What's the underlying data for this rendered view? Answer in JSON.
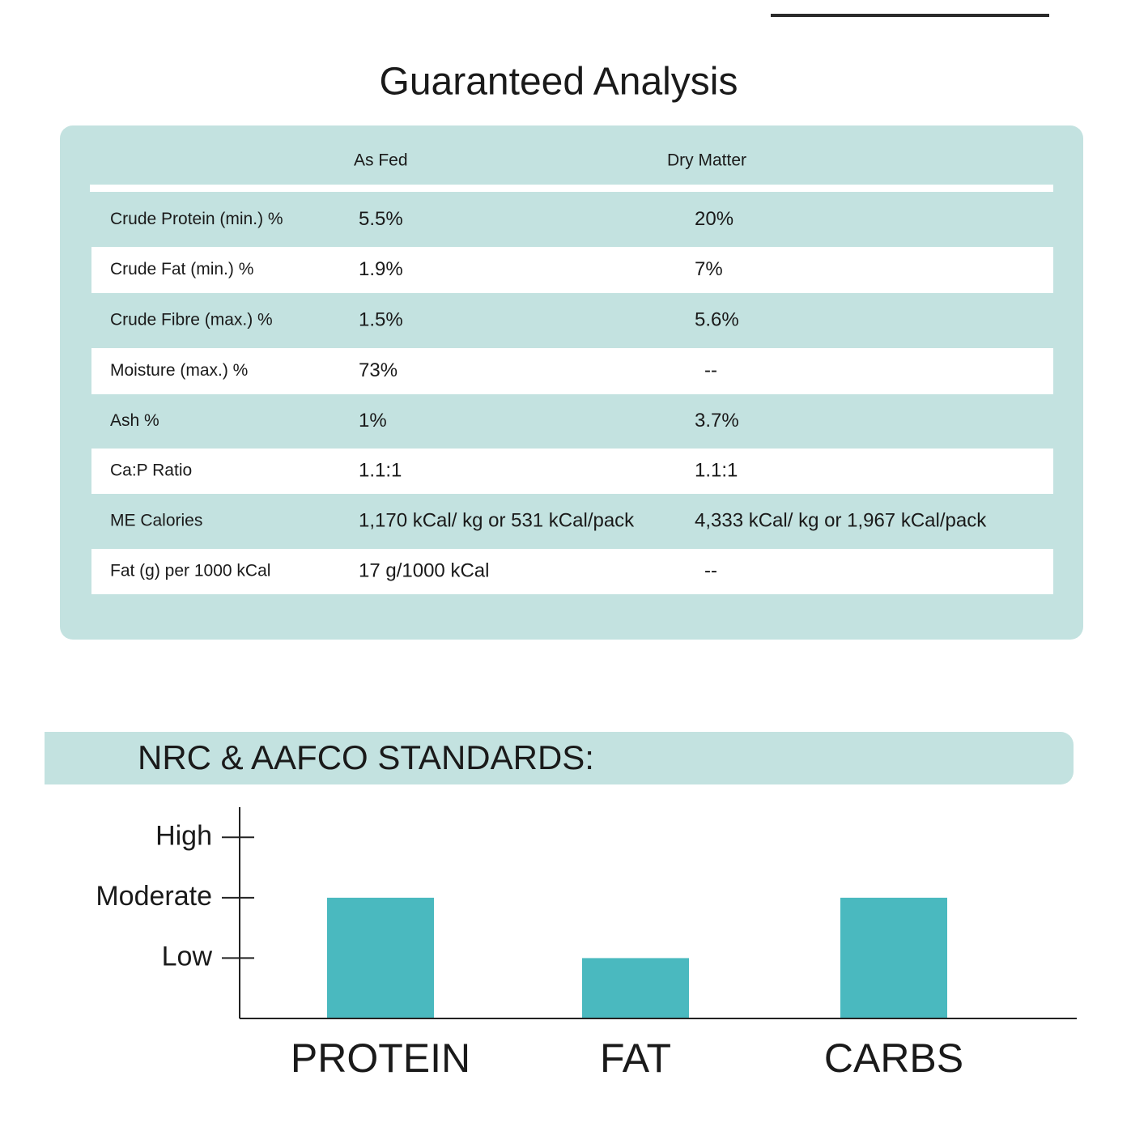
{
  "table": {
    "title": "Guaranteed Analysis",
    "columns": [
      "As Fed",
      "Dry Matter"
    ],
    "rows": [
      [
        "Crude Protein (min.) %",
        "5.5%",
        "20%"
      ],
      [
        "Crude Fat (min.) %",
        "1.9%",
        "7%"
      ],
      [
        "Crude Fibre (max.) %",
        "1.5%",
        "5.6%"
      ],
      [
        "Moisture (max.) %",
        "73%",
        "--"
      ],
      [
        "Ash %",
        "1%",
        "3.7%"
      ],
      [
        "Ca:P Ratio",
        "1.1:1",
        "1.1:1"
      ],
      [
        "ME Calories",
        "1,170 kCal/ kg or 531 kCal/pack",
        "4,333 kCal/ kg or 1,967 kCal/pack"
      ],
      [
        "Fat (g) per 1000 kCal",
        "17 g/1000 kCal",
        "--"
      ]
    ]
  },
  "chart_data": {
    "type": "bar",
    "title": "NRC & AAFCO STANDARDS:",
    "categories": [
      "PROTEIN",
      "FAT",
      "CARBS"
    ],
    "values": [
      2,
      1,
      2
    ],
    "color": "#4ab9bf",
    "ylim": [
      0,
      3.5
    ],
    "yticks": [
      {
        "value": 1,
        "label": "Low"
      },
      {
        "value": 2,
        "label": "Moderate"
      },
      {
        "value": 3,
        "label": "High"
      }
    ]
  }
}
